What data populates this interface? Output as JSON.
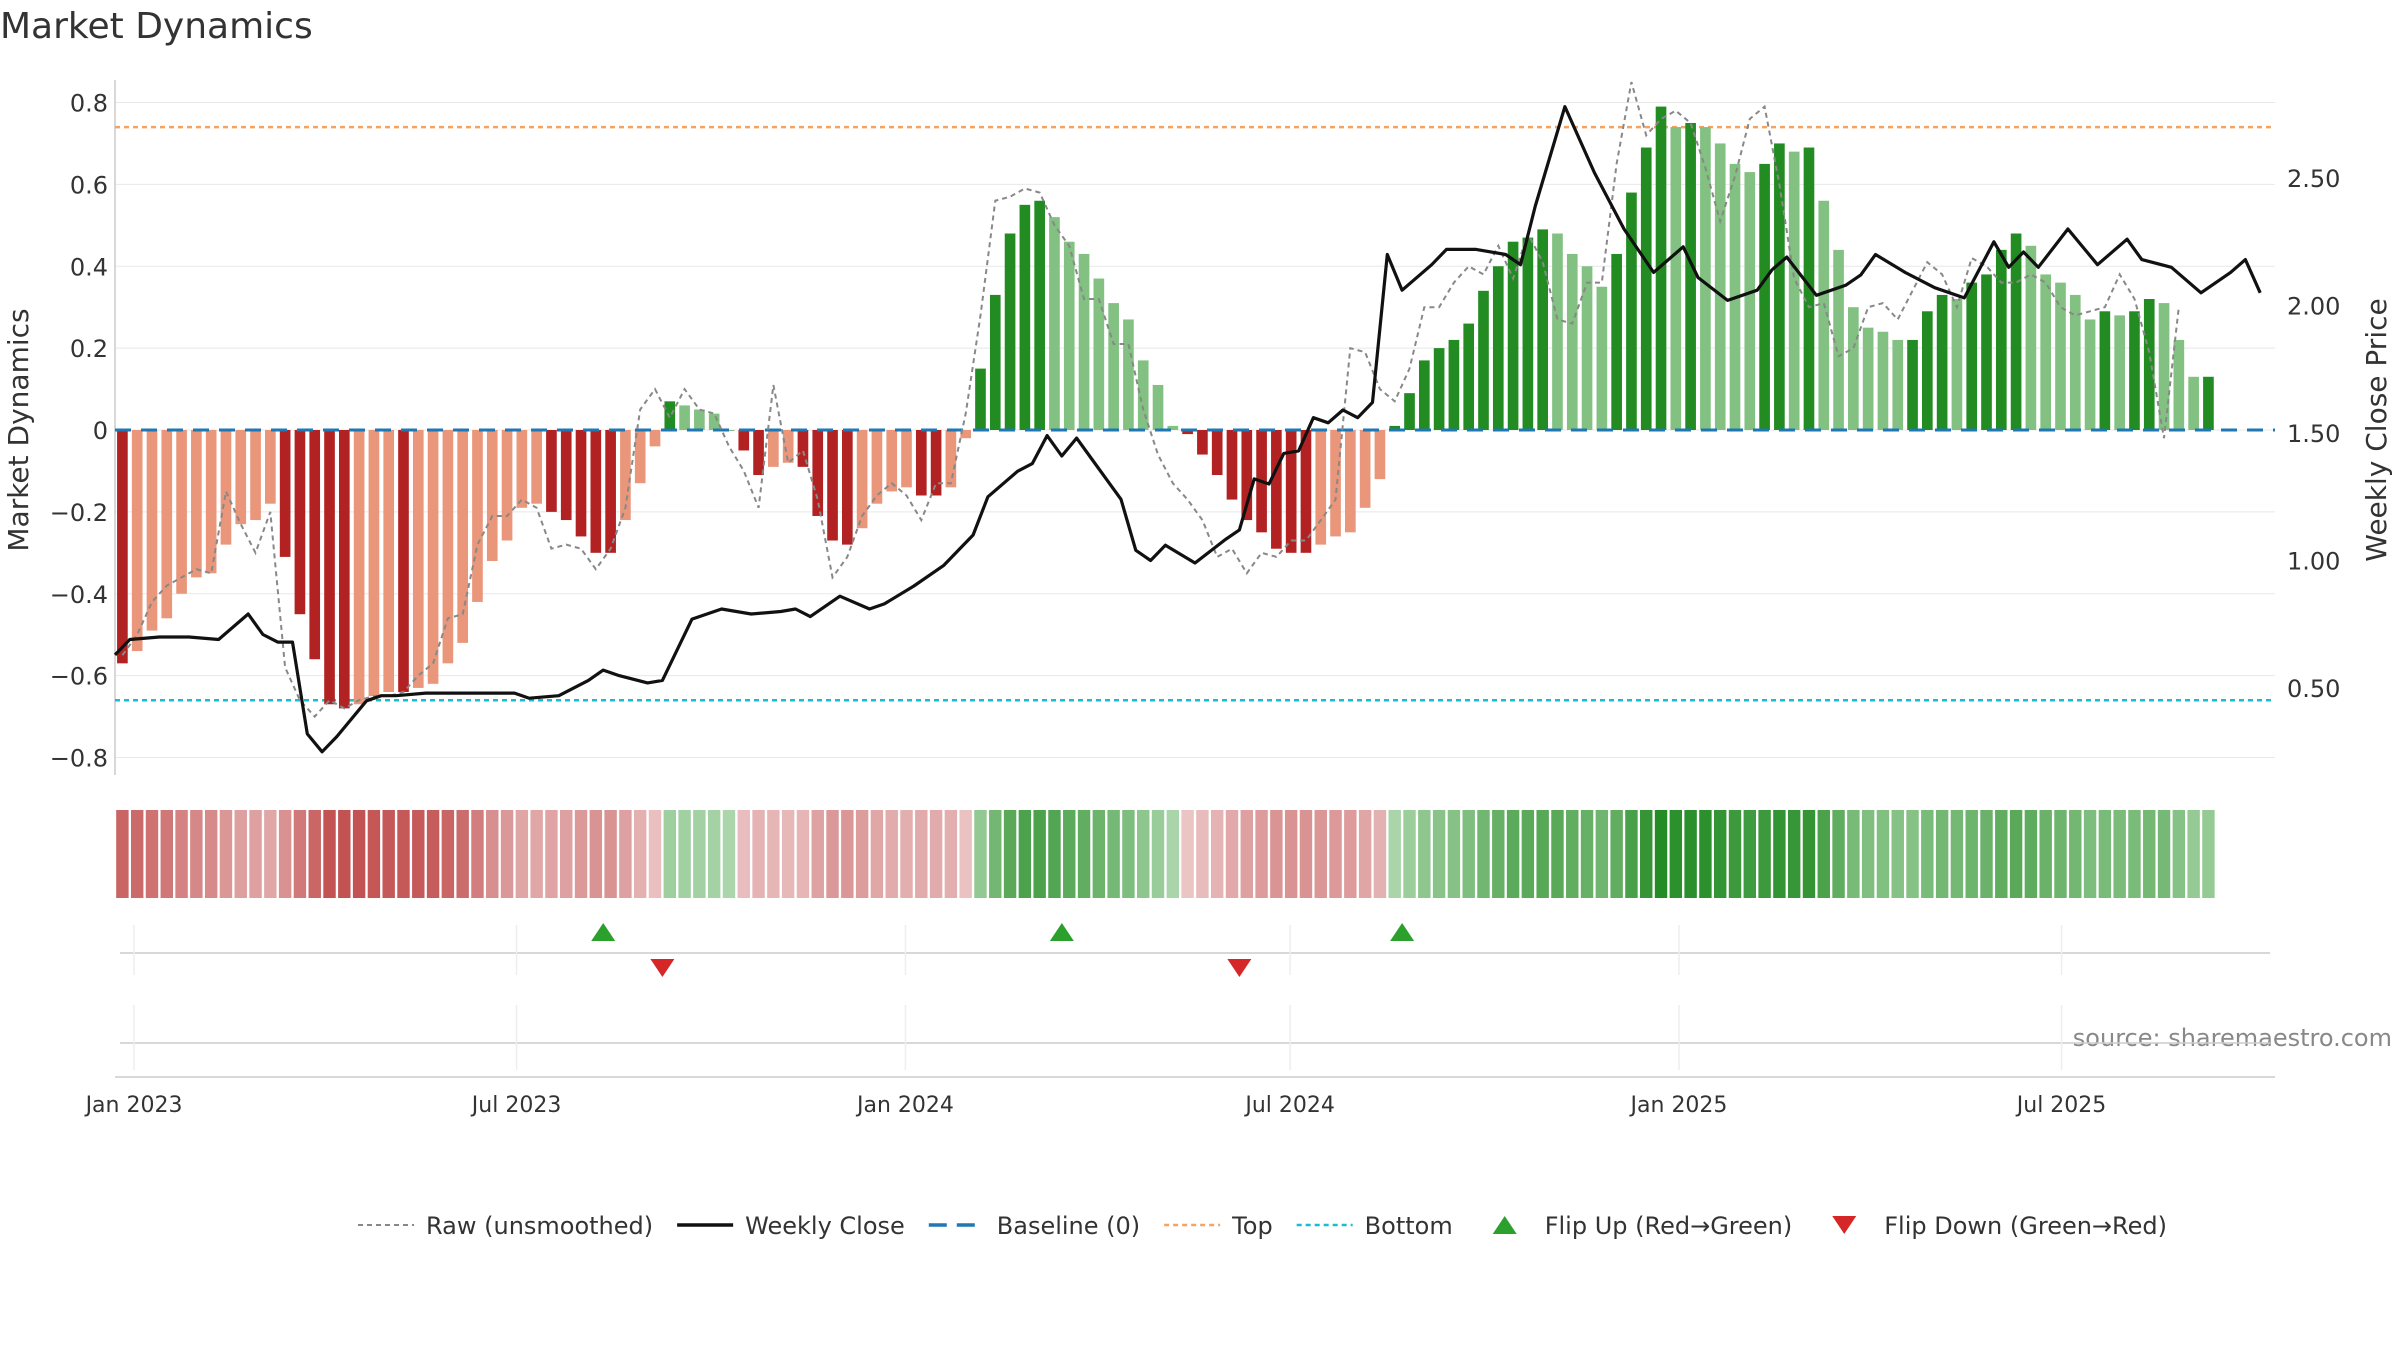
{
  "chart_data": {
    "type": "bar",
    "title": "Market Dynamics",
    "ylabel_left": "Market Dynamics",
    "ylabel_right": "Weekly Close Price",
    "ylim_left": [
      -0.9,
      0.85
    ],
    "ylim_right": [
      0.1,
      2.95
    ],
    "yticks_left": [
      0.8,
      0.6,
      0.4,
      0.2,
      0,
      -0.2,
      -0.4,
      -0.6,
      -0.8
    ],
    "yticks_left_labels": [
      "0.8",
      "0.6",
      "0.4",
      "0.2",
      "0",
      "−0.2",
      "−0.4",
      "−0.6",
      "−0.8"
    ],
    "yticks_right": [
      2.5,
      2.0,
      1.5,
      1.0,
      0.5
    ],
    "yticks_right_labels": [
      "2.50",
      "2.00",
      "1.50",
      "1.00",
      "0.50"
    ],
    "x_start": "2022-12-23",
    "x_end": "2025-10-10",
    "xticks": [
      {
        "date": "2023-01-01",
        "label": "Jan 2023"
      },
      {
        "date": "2023-07-01",
        "label": "Jul 2023"
      },
      {
        "date": "2024-01-01",
        "label": "Jan 2024"
      },
      {
        "date": "2024-07-01",
        "label": "Jul 2024"
      },
      {
        "date": "2025-01-01",
        "label": "Jan 2025"
      },
      {
        "date": "2025-07-01",
        "label": "Jul 2025"
      }
    ],
    "bar_start_date": "2022-12-23",
    "bar_interval_days": 7,
    "smoothed_values": [
      -0.57,
      -0.54,
      -0.49,
      -0.46,
      -0.4,
      -0.36,
      -0.35,
      -0.28,
      -0.23,
      -0.22,
      -0.18,
      -0.31,
      -0.45,
      -0.56,
      -0.67,
      -0.68,
      -0.67,
      -0.65,
      -0.64,
      -0.64,
      -0.63,
      -0.62,
      -0.57,
      -0.52,
      -0.42,
      -0.32,
      -0.27,
      -0.19,
      -0.18,
      -0.2,
      -0.22,
      -0.26,
      -0.3,
      -0.3,
      -0.22,
      -0.13,
      -0.04,
      0.07,
      0.06,
      0.05,
      0.04,
      0.0,
      -0.05,
      -0.11,
      -0.09,
      -0.08,
      -0.09,
      -0.21,
      -0.27,
      -0.28,
      -0.24,
      -0.18,
      -0.15,
      -0.14,
      -0.16,
      -0.16,
      -0.14,
      -0.02,
      0.15,
      0.33,
      0.48,
      0.55,
      0.56,
      0.52,
      0.46,
      0.43,
      0.37,
      0.31,
      0.27,
      0.17,
      0.11,
      0.01,
      -0.01,
      -0.06,
      -0.11,
      -0.17,
      -0.22,
      -0.25,
      -0.29,
      -0.3,
      -0.3,
      -0.28,
      -0.26,
      -0.25,
      -0.19,
      -0.12,
      0.01,
      0.09,
      0.17,
      0.2,
      0.22,
      0.26,
      0.34,
      0.4,
      0.46,
      0.47,
      0.49,
      0.48,
      0.43,
      0.4,
      0.35,
      0.43,
      0.58,
      0.69,
      0.79,
      0.74,
      0.75,
      0.74,
      0.7,
      0.65,
      0.63,
      0.65,
      0.7,
      0.68,
      0.69,
      0.56,
      0.44,
      0.3,
      0.25,
      0.24,
      0.22,
      0.22,
      0.29,
      0.33,
      0.32,
      0.36,
      0.38,
      0.44,
      0.48,
      0.45,
      0.38,
      0.36,
      0.33,
      0.27,
      0.29,
      0.28,
      0.29,
      0.32,
      0.31,
      0.22,
      0.13,
      0.13
    ],
    "raw_values": [
      -0.55,
      -0.5,
      -0.42,
      -0.38,
      -0.36,
      -0.34,
      -0.35,
      -0.15,
      -0.23,
      -0.3,
      -0.2,
      -0.58,
      -0.66,
      -0.7,
      -0.66,
      -0.68,
      -0.66,
      -0.65,
      -0.65,
      -0.64,
      -0.6,
      -0.57,
      -0.46,
      -0.45,
      -0.28,
      -0.21,
      -0.21,
      -0.17,
      -0.19,
      -0.29,
      -0.28,
      -0.29,
      -0.34,
      -0.29,
      -0.19,
      0.05,
      0.1,
      0.03,
      0.1,
      0.05,
      0.04,
      -0.04,
      -0.1,
      -0.19,
      0.11,
      -0.08,
      -0.05,
      -0.17,
      -0.36,
      -0.31,
      -0.21,
      -0.16,
      -0.13,
      -0.16,
      -0.22,
      -0.13,
      -0.13,
      0.04,
      0.28,
      0.56,
      0.57,
      0.59,
      0.58,
      0.5,
      0.45,
      0.32,
      0.32,
      0.21,
      0.21,
      0.05,
      -0.06,
      -0.13,
      -0.17,
      -0.22,
      -0.31,
      -0.29,
      -0.35,
      -0.3,
      -0.31,
      -0.27,
      -0.27,
      -0.22,
      -0.17,
      0.2,
      0.19,
      0.1,
      0.07,
      0.15,
      0.3,
      0.3,
      0.36,
      0.4,
      0.38,
      0.45,
      0.37,
      0.48,
      0.41,
      0.27,
      0.26,
      0.36,
      0.36,
      0.65,
      0.85,
      0.72,
      0.76,
      0.78,
      0.75,
      0.64,
      0.51,
      0.62,
      0.76,
      0.79,
      0.6,
      0.37,
      0.3,
      0.31,
      0.18,
      0.2,
      0.3,
      0.31,
      0.27,
      0.34,
      0.41,
      0.38,
      0.3,
      0.42,
      0.4,
      0.36,
      0.36,
      0.38,
      0.36,
      0.3,
      0.28,
      0.29,
      0.3,
      0.38,
      0.32,
      0.19,
      -0.02,
      0.3
    ],
    "close_dates": [
      "2022-12-23",
      "2022-12-30",
      "2023-01-13",
      "2023-01-27",
      "2023-02-10",
      "2023-02-24",
      "2023-03-03",
      "2023-03-10",
      "2023-03-17",
      "2023-03-24",
      "2023-03-31",
      "2023-04-07",
      "2023-04-21",
      "2023-04-28",
      "2023-05-05",
      "2023-05-19",
      "2023-06-02",
      "2023-06-16",
      "2023-06-30",
      "2023-07-07",
      "2023-07-21",
      "2023-08-04",
      "2023-08-11",
      "2023-08-18",
      "2023-09-01",
      "2023-09-08",
      "2023-09-22",
      "2023-10-06",
      "2023-10-20",
      "2023-11-03",
      "2023-11-10",
      "2023-11-17",
      "2023-12-01",
      "2023-12-15",
      "2023-12-22",
      "2024-01-05",
      "2024-01-19",
      "2024-02-02",
      "2024-02-09",
      "2024-02-23",
      "2024-03-01",
      "2024-03-08",
      "2024-03-15",
      "2024-03-22",
      "2024-03-29",
      "2024-04-05",
      "2024-04-12",
      "2024-04-19",
      "2024-04-26",
      "2024-05-03",
      "2024-05-17",
      "2024-05-31",
      "2024-06-07",
      "2024-06-14",
      "2024-06-21",
      "2024-06-28",
      "2024-07-05",
      "2024-07-12",
      "2024-07-19",
      "2024-07-26",
      "2024-08-02",
      "2024-08-09",
      "2024-08-16",
      "2024-08-23",
      "2024-09-06",
      "2024-09-13",
      "2024-09-27",
      "2024-10-11",
      "2024-10-18",
      "2024-10-25",
      "2024-11-08",
      "2024-11-22",
      "2024-12-06",
      "2024-12-20",
      "2025-01-03",
      "2025-01-10",
      "2025-01-24",
      "2025-02-07",
      "2025-02-14",
      "2025-02-21",
      "2025-03-07",
      "2025-03-21",
      "2025-03-28",
      "2025-04-04",
      "2025-04-18",
      "2025-05-02",
      "2025-05-16",
      "2025-05-30",
      "2025-06-06",
      "2025-06-13",
      "2025-06-20",
      "2025-07-04",
      "2025-07-18",
      "2025-08-01",
      "2025-08-08",
      "2025-08-22",
      "2025-09-05",
      "2025-09-19",
      "2025-09-26",
      "2025-10-03"
    ],
    "close_values": [
      0.63,
      0.69,
      0.7,
      0.7,
      0.69,
      0.79,
      0.71,
      0.68,
      0.68,
      0.32,
      0.25,
      0.31,
      0.45,
      0.47,
      0.47,
      0.48,
      0.48,
      0.48,
      0.48,
      0.46,
      0.47,
      0.53,
      0.57,
      0.55,
      0.52,
      0.53,
      0.77,
      0.81,
      0.79,
      0.8,
      0.81,
      0.78,
      0.86,
      0.81,
      0.83,
      0.9,
      0.98,
      1.1,
      1.25,
      1.35,
      1.38,
      1.49,
      1.41,
      1.48,
      1.4,
      1.32,
      1.24,
      1.04,
      1.0,
      1.06,
      0.99,
      1.08,
      1.12,
      1.32,
      1.3,
      1.42,
      1.43,
      1.56,
      1.54,
      1.59,
      1.56,
      1.62,
      2.2,
      2.06,
      2.16,
      2.22,
      2.22,
      2.2,
      2.16,
      2.39,
      2.78,
      2.52,
      2.3,
      2.13,
      2.23,
      2.11,
      2.02,
      2.06,
      2.14,
      2.19,
      2.04,
      2.08,
      2.12,
      2.2,
      2.13,
      2.07,
      2.03,
      2.25,
      2.15,
      2.21,
      2.15,
      2.3,
      2.16,
      2.26,
      2.18,
      2.15,
      2.05,
      2.13,
      2.18,
      2.05
    ],
    "top_level": 0.74,
    "bottom_level": -0.66,
    "baseline": 0,
    "flip_up_dates": [
      "2023-08-11",
      "2024-03-15",
      "2024-08-23"
    ],
    "flip_down_dates": [
      "2023-09-08",
      "2024-06-07"
    ],
    "source_text": "source: sharemaestro.com",
    "legend": [
      {
        "label": "Raw (unsmoothed)",
        "kind": "dashed-gray"
      },
      {
        "label": "Weekly Close",
        "kind": "solid-black"
      },
      {
        "label": "Baseline (0)",
        "kind": "dashed-blue"
      },
      {
        "label": "Top",
        "kind": "dotted-orange"
      },
      {
        "label": "Bottom",
        "kind": "dotted-cyan"
      },
      {
        "label": "Flip Up (Red→Green)",
        "kind": "triangle-up"
      },
      {
        "label": "Flip Down (Green→Red)",
        "kind": "triangle-down"
      }
    ],
    "colors": {
      "positive_strong": "#228B22",
      "positive_weak": "#82C182",
      "negative_strong": "#B22222",
      "negative_weak": "#E9967A",
      "raw_line": "#888888",
      "close_line": "#111111",
      "baseline": "#1F77B4",
      "top": "#F4A460",
      "bottom": "#17BECF",
      "flip_up": "#2CA02C",
      "flip_down": "#D62728"
    },
    "grid": true,
    "legend_position": "bottom-center"
  }
}
